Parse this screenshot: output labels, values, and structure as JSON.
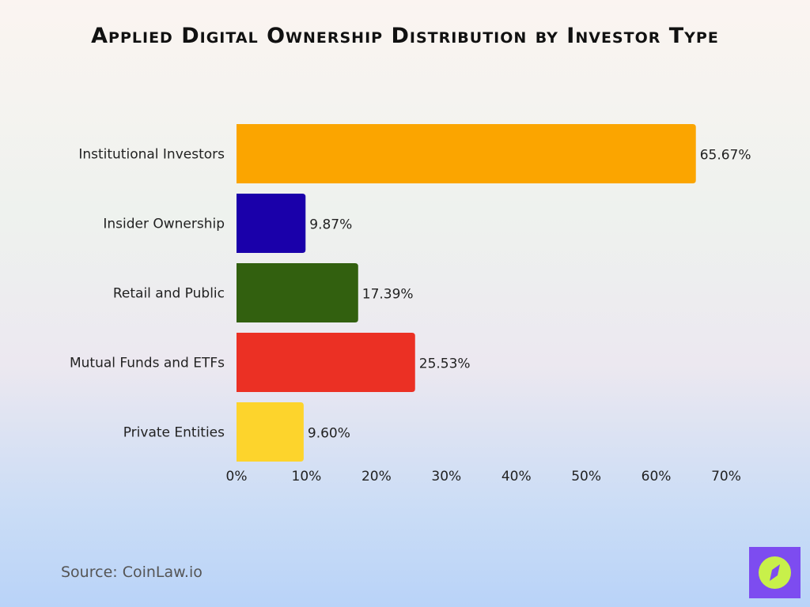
{
  "chart_data": {
    "type": "bar",
    "orientation": "horizontal",
    "title": "Applied Digital Ownership Distribution by Investor Type",
    "categories": [
      "Institutional Investors",
      "Insider Ownership",
      "Retail and Public",
      "Mutual Funds and ETFs",
      "Private Entities"
    ],
    "values": [
      65.67,
      9.87,
      17.39,
      25.53,
      9.6
    ],
    "data_labels": [
      "65.67%",
      "9.87%",
      "17.39%",
      "25.53%",
      "9.60%"
    ],
    "colors": [
      "#fba500",
      "#1a00aa",
      "#32600f",
      "#eb3024",
      "#fdd42c"
    ],
    "xlim": [
      0,
      70
    ],
    "xticks": [
      "0%",
      "10%",
      "20%",
      "30%",
      "40%",
      "50%",
      "60%",
      "70%"
    ],
    "grid": false
  },
  "source": "Source: CoinLaw.io",
  "logo": "compass-icon"
}
